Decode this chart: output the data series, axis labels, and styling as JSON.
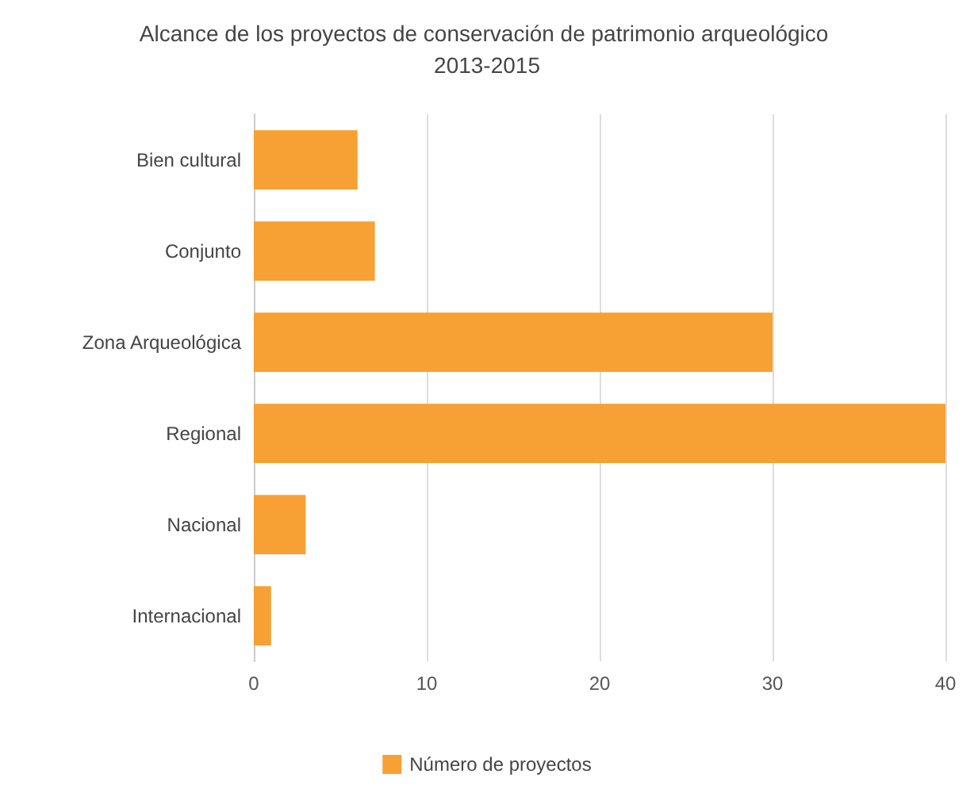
{
  "chart_data": {
    "type": "bar",
    "orientation": "horizontal",
    "title": "Alcance de los proyectos de conservación de patrimonio arqueológico 2013-2015",
    "categories": [
      "Bien cultural",
      "Conjunto",
      "Zona Arqueológica",
      "Regional",
      "Nacional",
      "Internacional"
    ],
    "series": [
      {
        "name": "Número de proyectos",
        "color": "#f7a033",
        "values": [
          6,
          7,
          30,
          40,
          3,
          1
        ]
      }
    ],
    "xlim": [
      0,
      40
    ],
    "xticks": [
      0,
      10,
      20,
      30,
      40
    ],
    "grid": "x",
    "legend": "bottom"
  }
}
